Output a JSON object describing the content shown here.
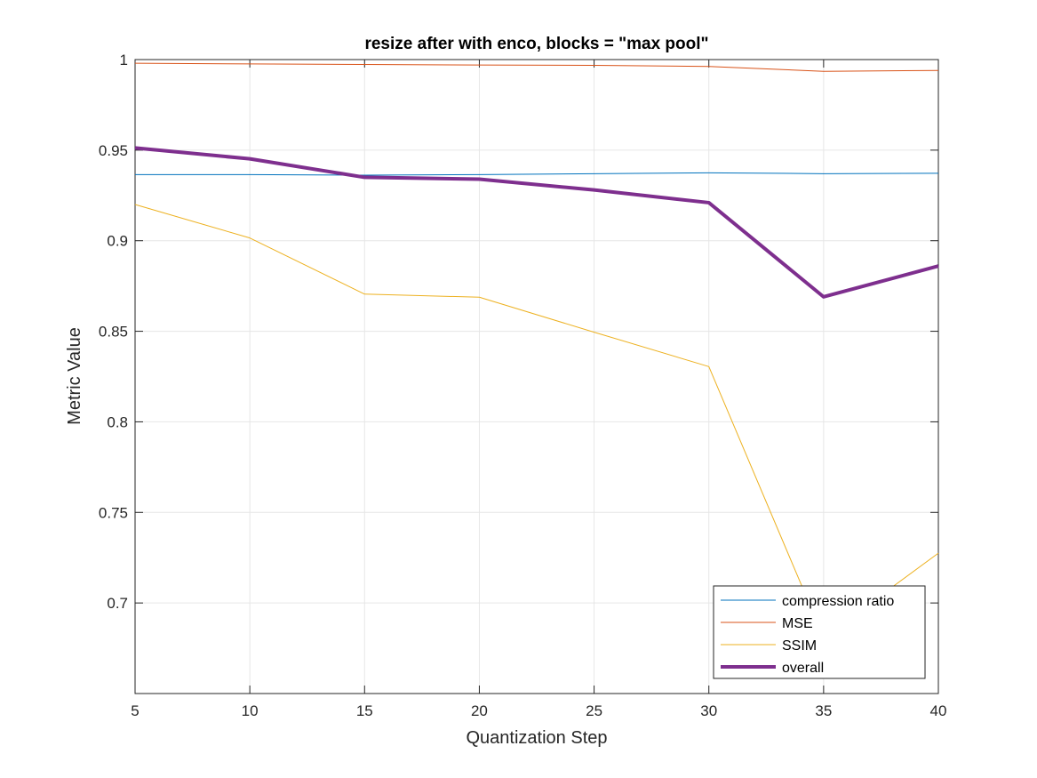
{
  "chart_data": {
    "type": "line",
    "title": "resize after with enco, blocks = \"max pool\"",
    "xlabel": "Quantization Step",
    "ylabel": "Metric Value",
    "x": [
      5,
      10,
      15,
      20,
      25,
      30,
      35,
      40
    ],
    "xlim": [
      5,
      40
    ],
    "ylim": [
      0.65,
      1.0
    ],
    "xticks": [
      5,
      10,
      15,
      20,
      25,
      30,
      35,
      40
    ],
    "yticks": [
      0.7,
      0.75,
      0.8,
      0.85,
      0.9,
      0.95,
      1
    ],
    "ytick_labels": [
      "0.7",
      "0.75",
      "0.8",
      "0.85",
      "0.9",
      "0.95",
      "1"
    ],
    "grid": true,
    "legend_position": "bottom-right",
    "series": [
      {
        "name": "compression ratio",
        "color": "#0072BD",
        "width": 1,
        "values": [
          0.9365,
          0.9365,
          0.9362,
          0.9365,
          0.937,
          0.9375,
          0.937,
          0.9372
        ]
      },
      {
        "name": "MSE",
        "color": "#D95319",
        "width": 1,
        "values": [
          0.998,
          0.9976,
          0.9973,
          0.997,
          0.9968,
          0.9962,
          0.9935,
          0.994
        ]
      },
      {
        "name": "SSIM",
        "color": "#EDB120",
        "width": 1,
        "values": [
          0.92,
          0.9015,
          0.8705,
          0.8688,
          0.8495,
          0.8305,
          0.681,
          0.7275
        ]
      },
      {
        "name": "overall",
        "color": "#7E2F8E",
        "width": 4,
        "values": [
          0.9512,
          0.9452,
          0.935,
          0.934,
          0.928,
          0.921,
          0.869,
          0.886
        ]
      }
    ]
  }
}
